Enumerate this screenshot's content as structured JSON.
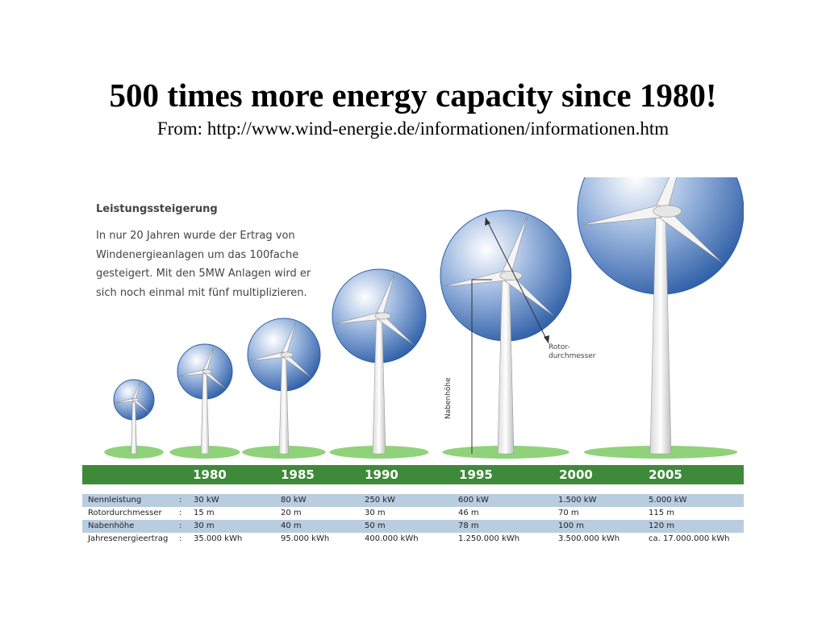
{
  "slide": {
    "title": "500 times more energy capacity since 1980!",
    "subtitle": "From: http://www.wind-energie.de/informationen/informationen.htm"
  },
  "figure": {
    "heading": "Leistungssteigerung",
    "intro": "In nur 20 Jahren wurde der Ertrag von Windenergieanlagen um das 100fache gesteigert. Mit den 5MW Anlagen wird er sich noch einmal mit fünf multiplizieren.",
    "callout_rotor": "Rotor-\ndurchmesser",
    "callout_hub": "Nabenhöhe",
    "colors": {
      "band_green": "#3f8a3a",
      "rotor_blue": "#3a6db5",
      "row_shade": "#b9cce0",
      "grass": "#8fd27a"
    },
    "icons": [
      "wind-turbine-icon"
    ],
    "years": [
      "1980",
      "1985",
      "1990",
      "1995",
      "2000",
      "2005"
    ],
    "table": [
      {
        "label": "Nennleistung",
        "sep": ":",
        "values": [
          "30 kW",
          "80 kW",
          "250 kW",
          "600 kW",
          "1.500 kW",
          "5.000 kW"
        ]
      },
      {
        "label": "Rotordurchmesser",
        "sep": ":",
        "values": [
          "15 m",
          "20 m",
          "30 m",
          "46 m",
          "70 m",
          "115 m"
        ]
      },
      {
        "label": "Nabenhöhe",
        "sep": ":",
        "values": [
          "30 m",
          "40 m",
          "50 m",
          "78 m",
          "100 m",
          "120 m"
        ]
      },
      {
        "label": "Jahresenergieertrag",
        "sep": ":",
        "values": [
          "35.000 kWh",
          "95.000 kWh",
          "400.000 kWh",
          "1.250.000 kWh",
          "3.500.000 kWh",
          "ca. 17.000.000 kWh"
        ]
      }
    ]
  }
}
